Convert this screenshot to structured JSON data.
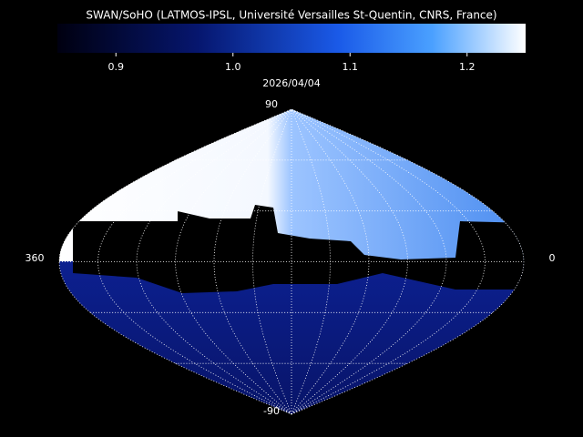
{
  "header": {
    "title": "SWAN/SoHO (LATMOS-IPSL, Université Versailles St-Quentin, CNRS, France)",
    "date": "2026/04/04"
  },
  "colorbar": {
    "range": [
      0.85,
      1.25
    ],
    "ticks": [
      0.9,
      {
        "value": 1.0,
        "label": "1.0"
      },
      1.1,
      1.2
    ]
  },
  "map": {
    "labels": {
      "top": "90",
      "bottom": "-90",
      "left": "360",
      "right": "0"
    }
  }
}
